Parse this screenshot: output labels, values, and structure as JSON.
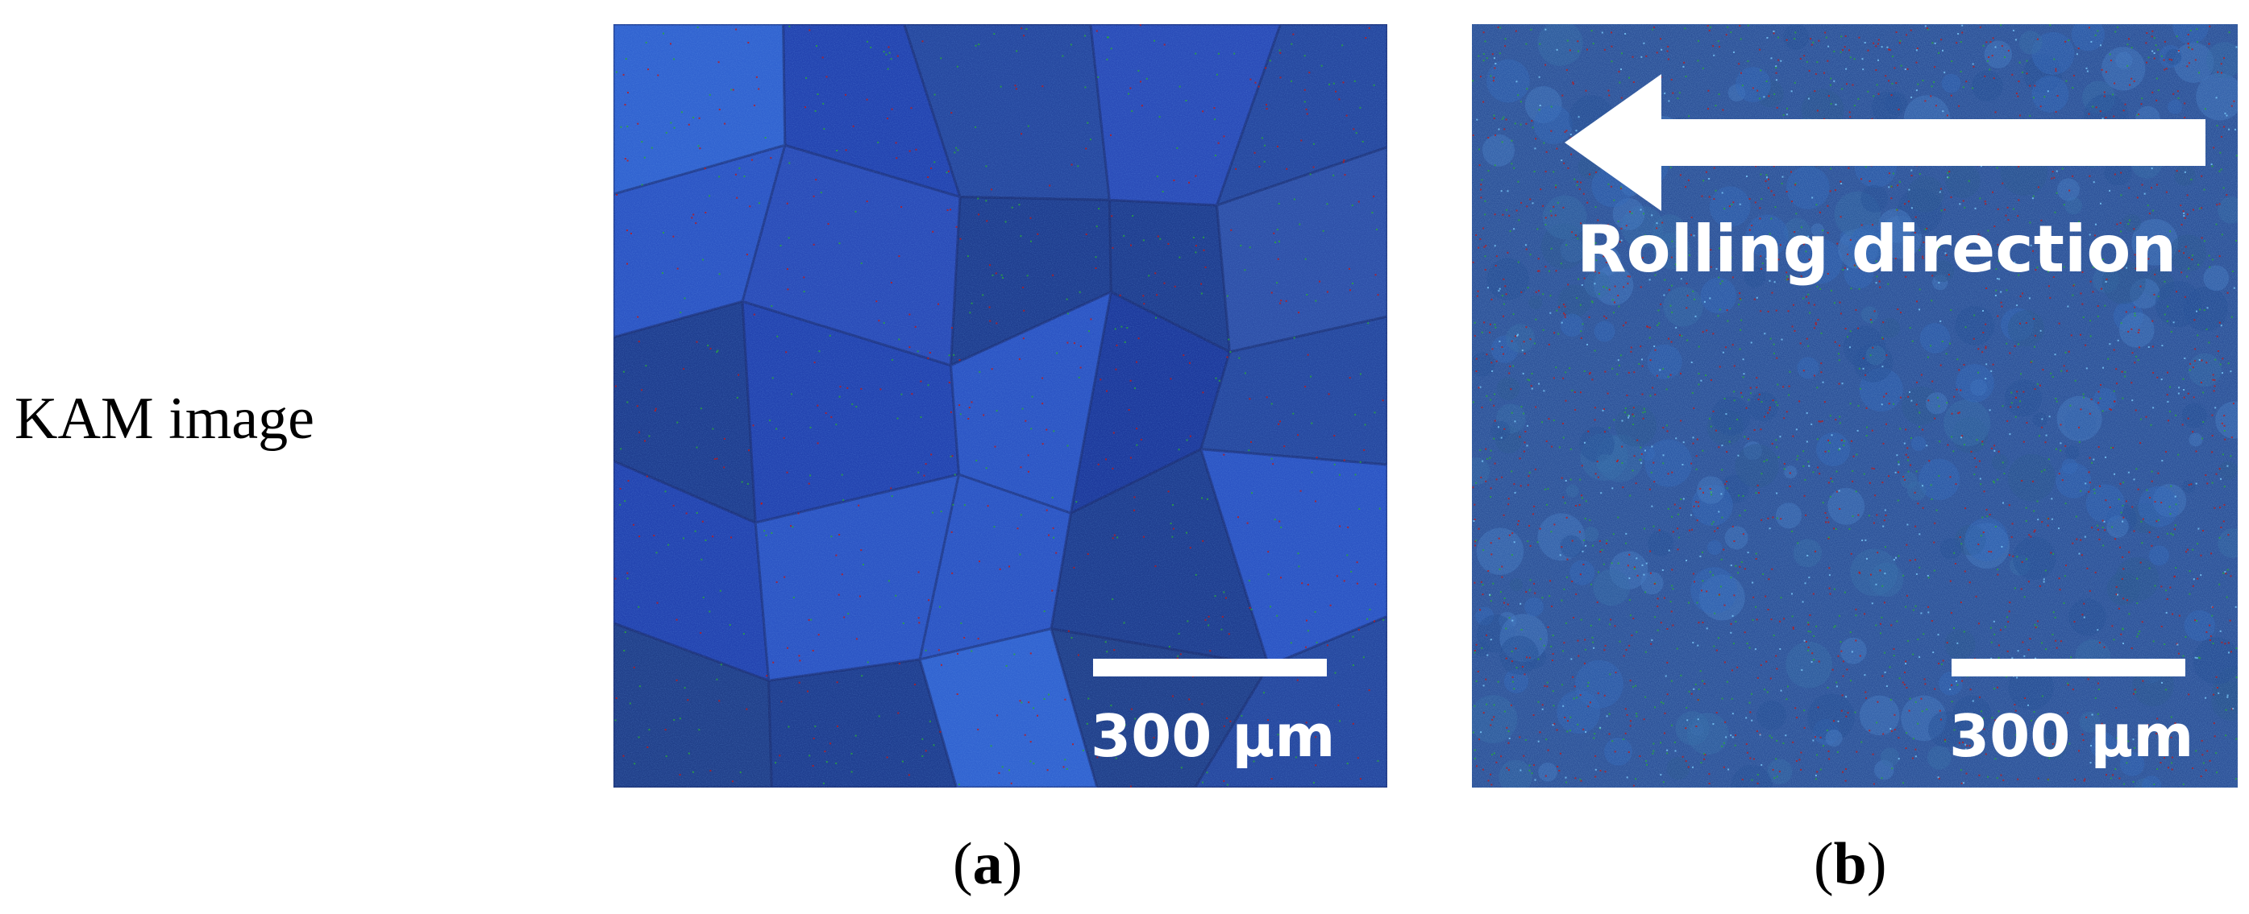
{
  "figure": {
    "row_label": "KAM image",
    "panels": [
      {
        "id": "a",
        "caption_open": "(",
        "caption_letter": "a",
        "caption_close": ")",
        "scale_bar_label": "300 μm"
      },
      {
        "id": "b",
        "caption_open": "(",
        "caption_letter": "b",
        "caption_close": ")",
        "scale_bar_label": "300 μm",
        "arrow_label": "Rolling direction"
      }
    ],
    "colors": {
      "kam_low": "#1f3fa8",
      "kam_mid": "#2aa83a",
      "kam_high": "#c01818",
      "annotation": "#ffffff"
    }
  }
}
